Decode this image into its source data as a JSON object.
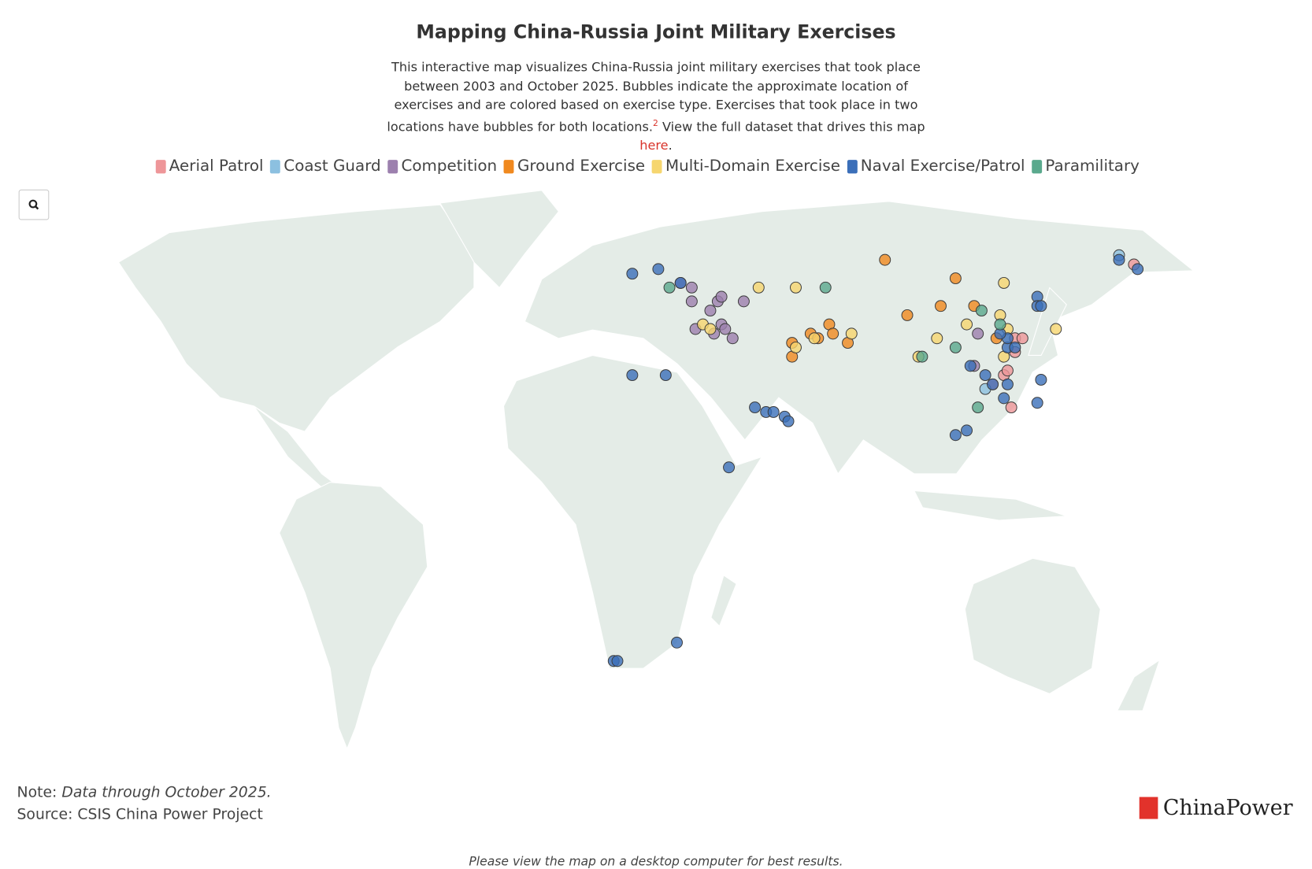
{
  "chart_data": {
    "type": "bubble-map",
    "title": "Mapping China-Russia Joint Military Exercises",
    "description": "This interactive map visualizes China-Russia joint military exercises that took place between 2003 and October 2025. Bubbles indicate the approximate location of exercises and are colored based on exercise type. Exercises that took place in two locations have bubbles for both locations.",
    "note_ref": "2",
    "description_link_lead": "View the full dataset that drives this map",
    "link_text": "here",
    "description_end": ".",
    "note_label": "Note:",
    "note_text": "Data through October 2025.",
    "source": "Source: CSIS China Power Project",
    "logo": "ChinaPower",
    "footer": "Please view the map on a desktop computer for best results.",
    "series": [
      {
        "name": "Aerial Patrol",
        "color": "#ee9699",
        "points": [
          [
            158,
            52
          ],
          [
            125,
            21
          ],
          [
            123,
            28
          ],
          [
            124,
            29
          ],
          [
            120,
            26
          ],
          [
            126,
            36
          ],
          [
            128,
            36
          ],
          [
            126,
            33
          ]
        ]
      },
      {
        "name": "Coast Guard",
        "color": "#8cc0e0",
        "points": [
          [
            154,
            54
          ],
          [
            118,
            25
          ]
        ]
      },
      {
        "name": "Competition",
        "color": "#9c80ae",
        "points": [
          [
            36,
            48
          ],
          [
            39,
            47
          ],
          [
            39,
            44
          ],
          [
            46,
            44
          ],
          [
            47,
            45
          ],
          [
            44,
            42
          ],
          [
            53,
            44
          ],
          [
            40,
            38
          ],
          [
            47,
            39
          ],
          [
            48,
            38
          ],
          [
            45,
            37
          ],
          [
            50,
            36
          ],
          [
            115,
            30
          ],
          [
            116,
            37
          ]
        ]
      },
      {
        "name": "Ground Exercise",
        "color": "#f0891f",
        "points": [
          [
            91,
            53
          ],
          [
            110,
            49
          ],
          [
            106,
            43
          ],
          [
            97,
            41
          ],
          [
            115,
            43
          ],
          [
            76,
            39
          ],
          [
            77,
            37
          ],
          [
            71,
            37
          ],
          [
            73,
            36
          ],
          [
            81,
            35
          ],
          [
            66,
            35
          ],
          [
            66,
            32
          ],
          [
            121,
            36
          ]
        ]
      },
      {
        "name": "Multi-Domain Exercise",
        "color": "#f6d66f",
        "points": [
          [
            57,
            47
          ],
          [
            67,
            47
          ],
          [
            123,
            48
          ],
          [
            122,
            41
          ],
          [
            113,
            39
          ],
          [
            124,
            38
          ],
          [
            105,
            36
          ],
          [
            123,
            32
          ],
          [
            100,
            32
          ],
          [
            137,
            38
          ],
          [
            82,
            37
          ],
          [
            42,
            39
          ],
          [
            44,
            38
          ],
          [
            67,
            34
          ],
          [
            72,
            36
          ]
        ]
      },
      {
        "name": "Naval Exercise/Patrol",
        "color": "#3b6fb9",
        "points": [
          [
            23,
            50
          ],
          [
            30,
            51
          ],
          [
            23,
            28
          ],
          [
            32,
            28
          ],
          [
            56,
            21
          ],
          [
            59,
            20
          ],
          [
            61,
            20
          ],
          [
            64,
            19
          ],
          [
            65,
            18
          ],
          [
            49,
            8
          ],
          [
            18,
            -34
          ],
          [
            19,
            -34
          ],
          [
            35,
            -30
          ],
          [
            110,
            15
          ],
          [
            113,
            16
          ],
          [
            118,
            28
          ],
          [
            120,
            26
          ],
          [
            124,
            26
          ],
          [
            123,
            23
          ],
          [
            132,
            22
          ],
          [
            133,
            27
          ],
          [
            132,
            45
          ],
          [
            132,
            43
          ],
          [
            133,
            43
          ],
          [
            114,
            30
          ],
          [
            124,
            34
          ],
          [
            126,
            34
          ],
          [
            124,
            36
          ],
          [
            122,
            37
          ],
          [
            154,
            53
          ],
          [
            159,
            51
          ],
          [
            36,
            48
          ]
        ]
      },
      {
        "name": "Paramilitary",
        "color": "#5aa98d",
        "points": [
          [
            33,
            47
          ],
          [
            75,
            47
          ],
          [
            117,
            42
          ],
          [
            122,
            39
          ],
          [
            101,
            32
          ],
          [
            110,
            34
          ],
          [
            116,
            21
          ]
        ]
      }
    ]
  }
}
